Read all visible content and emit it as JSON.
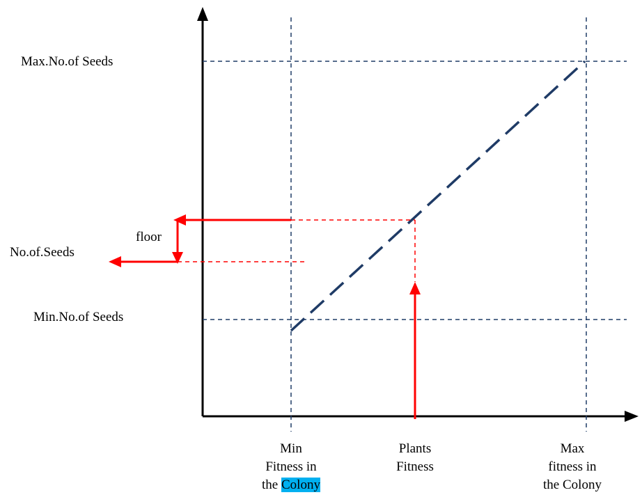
{
  "labels": {
    "max_seeds": "Max.No.of  Seeds",
    "num_seeds": "No.of.Seeds",
    "floor": "floor",
    "min_seeds": "Min.No.of  Seeds",
    "min_fitness": {
      "line1": "Min",
      "line2": "Fitness in",
      "line3_pre": "the ",
      "line3_highlight": "Colony"
    },
    "plants_fitness": {
      "line1": "Plants",
      "line2": "Fitness"
    },
    "max_fitness": {
      "line1": "Max",
      "line2": "fitness in",
      "line3": "the Colony"
    }
  },
  "colors": {
    "axis": "#000000",
    "guide": "#1f3b66",
    "mapping": "#ff0000",
    "highlight": "#00b0f0"
  }
}
